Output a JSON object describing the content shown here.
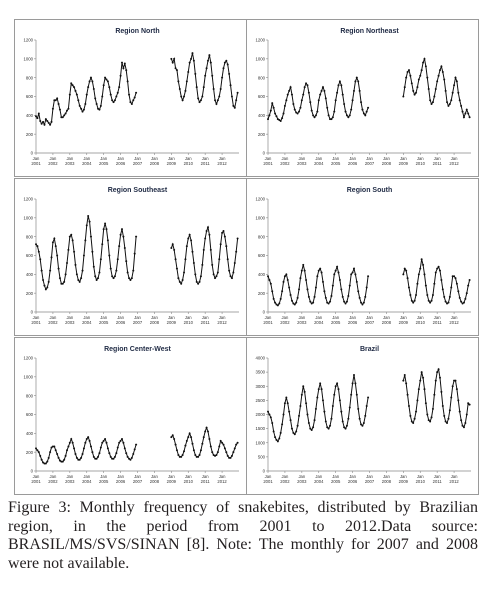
{
  "chart_data": [
    {
      "type": "line",
      "title": "Region North",
      "ylim": [
        0,
        1200
      ],
      "yticks": [
        0,
        200,
        400,
        600,
        800,
        1000,
        1200
      ],
      "xticks": [
        "Jan 2001",
        "Jan 2002",
        "Jan 2003",
        "Jan 2004",
        "Jan 2005",
        "Jan 2006",
        "Jan 2007",
        "Jan 2008",
        "Jan 2009",
        "Jan 2010",
        "Jan 2011",
        "Jan 2012"
      ],
      "series": [
        {
          "years": [
            2001,
            2006
          ],
          "values": [
            390,
            370,
            420,
            340,
            310,
            330,
            300,
            360,
            340,
            320,
            300,
            330,
            470,
            560,
            560,
            580,
            520,
            460,
            380,
            380,
            400,
            420,
            450,
            470,
            620,
            740,
            720,
            700,
            660,
            620,
            560,
            500,
            470,
            440,
            460,
            520,
            620,
            700,
            760,
            800,
            760,
            680,
            580,
            520,
            470,
            460,
            500,
            600,
            720,
            800,
            780,
            760,
            700,
            620,
            560,
            540,
            560,
            600,
            640,
            700,
            820,
            960,
            900,
            950,
            880,
            760,
            620,
            540,
            520,
            560,
            590,
            640
          ]
        },
        {
          "years": [
            2009,
            2012
          ],
          "values": [
            1000,
            960,
            1000,
            900,
            880,
            760,
            680,
            600,
            560,
            600,
            660,
            760,
            860,
            960,
            1000,
            1060,
            980,
            840,
            700,
            580,
            540,
            560,
            600,
            700,
            820,
            900,
            980,
            1040,
            960,
            820,
            680,
            560,
            520,
            560,
            600,
            680,
            800,
            900,
            960,
            980,
            940,
            840,
            720,
            600,
            500,
            480,
            560,
            640
          ]
        }
      ]
    },
    {
      "type": "line",
      "title": "Region Northeast",
      "ylim": [
        0,
        1200
      ],
      "yticks": [
        0,
        200,
        400,
        600,
        800,
        1000,
        1200
      ],
      "xticks": [
        "Jan 2001",
        "Jan 2002",
        "Jan 2003",
        "Jan 2004",
        "Jan 2005",
        "Jan 2006",
        "Jan 2007",
        "Jan 2008",
        "Jan 2009",
        "Jan 2010",
        "Jan 2011",
        "Jan 2012"
      ],
      "series": [
        {
          "years": [
            2001,
            2006
          ],
          "values": [
            360,
            400,
            450,
            530,
            480,
            420,
            390,
            360,
            350,
            340,
            370,
            420,
            500,
            560,
            620,
            660,
            700,
            620,
            520,
            460,
            430,
            420,
            440,
            480,
            560,
            620,
            700,
            740,
            720,
            640,
            540,
            450,
            400,
            380,
            400,
            440,
            560,
            620,
            660,
            700,
            660,
            580,
            480,
            400,
            360,
            360,
            380,
            440,
            560,
            640,
            720,
            760,
            720,
            620,
            520,
            440,
            400,
            380,
            400,
            460,
            560,
            660,
            760,
            800,
            760,
            660,
            540,
            460,
            420,
            400,
            440,
            480
          ]
        },
        {
          "years": [
            2009,
            2012
          ],
          "values": [
            600,
            700,
            800,
            860,
            880,
            820,
            740,
            660,
            620,
            640,
            700,
            780,
            820,
            880,
            960,
            1000,
            920,
            800,
            680,
            560,
            520,
            540,
            600,
            680,
            760,
            820,
            880,
            920,
            860,
            780,
            660,
            540,
            500,
            520,
            560,
            640,
            720,
            800,
            760,
            640,
            560,
            500,
            440,
            380,
            420,
            460,
            420,
            380
          ]
        }
      ]
    },
    {
      "type": "line",
      "title": "Region Southeast",
      "ylim": [
        0,
        1200
      ],
      "yticks": [
        0,
        200,
        400,
        600,
        800,
        1000,
        1200
      ],
      "xticks": [
        "Jan 2001",
        "Jan 2002",
        "Jan 2003",
        "Jan 2004",
        "Jan 2005",
        "Jan 2006",
        "Jan 2007",
        "Jan 2008",
        "Jan 2009",
        "Jan 2010",
        "Jan 2011",
        "Jan 2012"
      ],
      "series": [
        {
          "years": [
            2001,
            2006
          ],
          "values": [
            720,
            700,
            640,
            560,
            440,
            340,
            280,
            240,
            260,
            320,
            440,
            580,
            740,
            780,
            700,
            600,
            460,
            360,
            300,
            300,
            320,
            400,
            520,
            660,
            800,
            820,
            760,
            640,
            500,
            400,
            340,
            320,
            360,
            440,
            600,
            760,
            920,
            1020,
            960,
            800,
            640,
            480,
            380,
            340,
            360,
            420,
            560,
            720,
            880,
            940,
            880,
            760,
            600,
            460,
            380,
            360,
            380,
            440,
            560,
            700,
            820,
            880,
            800,
            680,
            540,
            420,
            360,
            340,
            360,
            440,
            620,
            800
          ]
        },
        {
          "years": [
            2009,
            2012
          ],
          "values": [
            680,
            720,
            660,
            560,
            460,
            360,
            320,
            300,
            340,
            420,
            560,
            700,
            780,
            820,
            760,
            640,
            520,
            400,
            320,
            300,
            320,
            380,
            500,
            660,
            780,
            860,
            900,
            820,
            660,
            500,
            400,
            360,
            380,
            420,
            560,
            720,
            840,
            860,
            800,
            700,
            560,
            440,
            380,
            360,
            420,
            520,
            640,
            780
          ]
        }
      ]
    },
    {
      "type": "line",
      "title": "Region South",
      "ylim": [
        0,
        1200
      ],
      "yticks": [
        0,
        200,
        400,
        600,
        800,
        1000,
        1200
      ],
      "xticks": [
        "Jan 2001",
        "Jan 2002",
        "Jan 2003",
        "Jan 2004",
        "Jan 2005",
        "Jan 2006",
        "Jan 2007",
        "Jan 2008",
        "Jan 2009",
        "Jan 2010",
        "Jan 2011",
        "Jan 2012"
      ],
      "series": [
        {
          "years": [
            2001,
            2006
          ],
          "values": [
            380,
            340,
            300,
            220,
            140,
            100,
            80,
            70,
            90,
            140,
            220,
            320,
            380,
            400,
            340,
            260,
            180,
            120,
            90,
            80,
            100,
            150,
            240,
            360,
            440,
            500,
            440,
            340,
            240,
            160,
            110,
            90,
            100,
            160,
            260,
            380,
            440,
            460,
            420,
            320,
            220,
            150,
            100,
            90,
            110,
            170,
            280,
            400,
            440,
            480,
            420,
            340,
            240,
            160,
            110,
            90,
            110,
            170,
            280,
            400,
            420,
            460,
            400,
            320,
            220,
            150,
            100,
            80,
            100,
            160,
            260,
            380
          ]
        },
        {
          "years": [
            2009,
            2012
          ],
          "values": [
            400,
            460,
            440,
            360,
            260,
            180,
            120,
            100,
            120,
            180,
            300,
            400,
            460,
            560,
            500,
            400,
            280,
            180,
            120,
            100,
            120,
            180,
            300,
            420,
            460,
            480,
            440,
            340,
            240,
            160,
            110,
            90,
            100,
            160,
            260,
            380,
            380,
            360,
            300,
            220,
            150,
            110,
            90,
            100,
            140,
            200,
            280,
            340
          ]
        }
      ]
    },
    {
      "type": "line",
      "title": "Region Center-West",
      "ylim": [
        0,
        1200
      ],
      "yticks": [
        0,
        200,
        400,
        600,
        800,
        1000,
        1200
      ],
      "xticks": [
        "Jan 2001",
        "Jan 2002",
        "Jan 2003",
        "Jan 2004",
        "Jan 2005",
        "Jan 2006",
        "Jan 2007",
        "Jan 2008",
        "Jan 2009",
        "Jan 2010",
        "Jan 2011",
        "Jan 2012"
      ],
      "series": [
        {
          "years": [
            2001,
            2006
          ],
          "values": [
            240,
            220,
            200,
            160,
            120,
            90,
            80,
            80,
            100,
            140,
            200,
            250,
            260,
            260,
            220,
            180,
            140,
            110,
            100,
            100,
            120,
            160,
            220,
            260,
            300,
            340,
            300,
            240,
            180,
            140,
            120,
            120,
            140,
            180,
            240,
            300,
            340,
            360,
            320,
            260,
            200,
            150,
            130,
            130,
            150,
            190,
            250,
            300,
            320,
            340,
            300,
            240,
            190,
            150,
            130,
            130,
            150,
            190,
            250,
            300,
            320,
            340,
            300,
            240,
            190,
            150,
            130,
            120,
            140,
            180,
            230,
            280
          ]
        },
        {
          "years": [
            2009,
            2012
          ],
          "values": [
            360,
            380,
            340,
            280,
            220,
            170,
            150,
            150,
            170,
            210,
            270,
            320,
            360,
            400,
            360,
            290,
            220,
            170,
            150,
            150,
            170,
            220,
            290,
            360,
            420,
            460,
            420,
            340,
            260,
            200,
            170,
            160,
            170,
            200,
            260,
            320,
            300,
            280,
            240,
            200,
            160,
            140,
            140,
            160,
            200,
            240,
            280,
            300
          ]
        }
      ]
    },
    {
      "type": "line",
      "title": "Brazil",
      "ylim": [
        0,
        4000
      ],
      "yticks": [
        0,
        500,
        1000,
        1500,
        2000,
        2500,
        3000,
        3500,
        4000
      ],
      "xticks": [
        "Jan 2001",
        "Jan 2002",
        "Jan 2003",
        "Jan 2004",
        "Jan 2005",
        "Jan 2006",
        "Jan 2007",
        "Jan 2008",
        "Jan 2009",
        "Jan 2010",
        "Jan 2011",
        "Jan 2012"
      ],
      "series": [
        {
          "years": [
            2001,
            2006
          ],
          "values": [
            2100,
            2000,
            1900,
            1700,
            1400,
            1200,
            1100,
            1050,
            1150,
            1350,
            1650,
            2000,
            2400,
            2600,
            2400,
            2100,
            1800,
            1500,
            1350,
            1300,
            1400,
            1600,
            1950,
            2300,
            2700,
            3000,
            2800,
            2400,
            2000,
            1700,
            1500,
            1450,
            1550,
            1800,
            2200,
            2600,
            2900,
            3100,
            2900,
            2500,
            2100,
            1750,
            1550,
            1500,
            1600,
            1850,
            2300,
            2700,
            3000,
            3100,
            2900,
            2500,
            2100,
            1750,
            1550,
            1500,
            1600,
            1850,
            2250,
            2700,
            3100,
            3400,
            3100,
            2700,
            2200,
            1850,
            1650,
            1600,
            1700,
            1950,
            2300,
            2600
          ]
        },
        {
          "years": [
            2009,
            2012
          ],
          "values": [
            3200,
            3400,
            3100,
            2700,
            2300,
            1950,
            1750,
            1700,
            1850,
            2100,
            2500,
            2900,
            3200,
            3500,
            3300,
            2900,
            2400,
            2000,
            1800,
            1750,
            1900,
            2200,
            2700,
            3200,
            3500,
            3600,
            3300,
            2800,
            2300,
            1950,
            1750,
            1700,
            1850,
            2150,
            2600,
            3000,
            3200,
            3200,
            2900,
            2500,
            2100,
            1800,
            1600,
            1550,
            1700,
            2000,
            2400,
            2350
          ]
        }
      ]
    }
  ],
  "caption": {
    "label": "Figure 3:",
    "text": " Monthly frequency of snakebites, distributed by Brazilian region, in the period from 2001 to 2012.Data source: BRASIL/MS/SVS/SINAN [8]. Note: The monthly for 2007 and 2008 were not available."
  }
}
